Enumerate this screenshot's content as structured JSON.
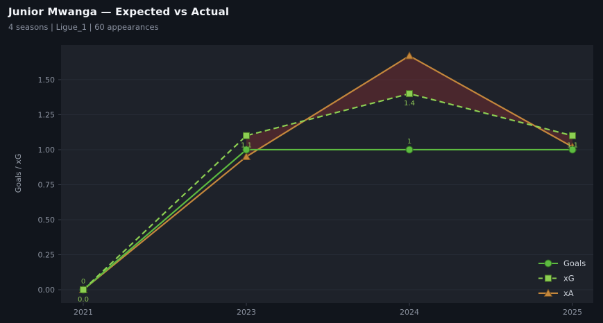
{
  "header": {
    "title": "Junior Mwanga — Expected vs Actual",
    "subtitle": "4 seasons | Ligue_1 | 60 appearances"
  },
  "chart_data": {
    "type": "line",
    "title": "Junior Mwanga — Expected vs Actual",
    "categories": [
      "2021",
      "2023",
      "2024",
      "2025"
    ],
    "series": [
      {
        "name": "Goals",
        "values": [
          0,
          1,
          1,
          1
        ],
        "labels": [
          "0",
          "",
          "1",
          ""
        ],
        "label_pos": "above",
        "color": "#5dbb40",
        "edge": "#2f6b22",
        "label_color": "#7cb84e",
        "marker": "circle",
        "dash": "solid",
        "z": 2
      },
      {
        "name": "xG",
        "values": [
          0.0,
          1.1,
          1.4,
          1.1
        ],
        "labels": [
          "0.0",
          "1.1",
          "1.4",
          "1.1"
        ],
        "label_pos": "below",
        "color": "#8ccf52",
        "edge": "#4c7a26",
        "label_color": "#8cc455",
        "marker": "square",
        "dash": "dashed",
        "z": 3
      },
      {
        "name": "xA",
        "values": [
          0.0,
          0.95,
          1.67,
          1.02
        ],
        "labels": [
          "",
          "",
          "",
          ""
        ],
        "label_pos": "above",
        "color": "#c4873c",
        "edge": "#7a5220",
        "label_color": "#c4873c",
        "marker": "triangle",
        "dash": "solid",
        "z": 1
      }
    ],
    "fill_between": {
      "series_a": "xG",
      "series_b": "xA",
      "from_index": 1,
      "to_index": 3,
      "color": "#8b2f33",
      "opacity": 0.4
    },
    "xlabel": "",
    "ylabel": "Goals / xG",
    "yticks": [
      0,
      0.25,
      0.5,
      0.75,
      1,
      1.25,
      1.5
    ],
    "ytick_labels": [
      "0.00",
      "0.25",
      "0.50",
      "0.75",
      "1.00",
      "1.25",
      "1.50"
    ],
    "ylim": [
      -0.094,
      1.747
    ],
    "grid": true,
    "legend_position": "lower right",
    "colors": {
      "page_bg": "#11151c",
      "plot_bg": "#1e222a",
      "grid": "#272c37",
      "tick_mark": "#3a404c"
    }
  }
}
